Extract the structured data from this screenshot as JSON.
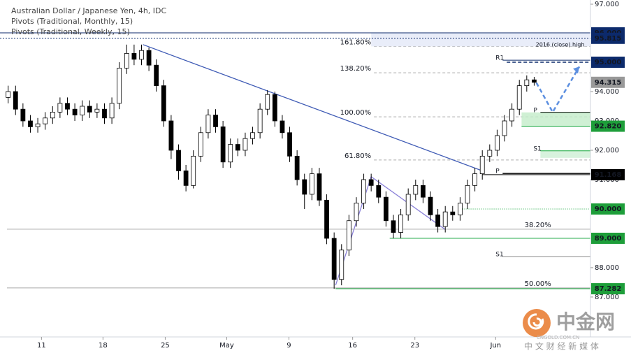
{
  "chart_data": {
    "type": "candlestick",
    "title": "Australian Dollar / Japanese Yen, 4h, IDC",
    "subtitles": [
      "Pivots (Traditional, Monthly, 15)",
      "Pivots (Traditional, Weekly, 15)"
    ],
    "open": [
      93.8,
      94.0,
      93.4,
      93.0,
      92.8,
      92.9,
      93.1,
      93.3,
      93.6,
      93.4,
      93.2,
      93.5,
      93.3,
      93.4,
      93.1,
      93.6,
      94.8,
      95.3,
      95.1,
      95.4,
      94.9,
      94.2,
      93.0,
      92.0,
      91.3,
      90.8,
      91.8,
      92.6,
      93.2,
      92.8,
      91.6,
      92.2,
      92.0,
      92.4,
      92.6,
      93.4,
      93.9,
      93.0,
      92.6,
      91.8,
      91.0,
      90.5,
      91.2,
      90.3,
      89.0,
      87.6,
      88.6,
      89.6,
      90.2,
      91.0,
      90.8,
      90.4,
      89.6,
      89.2,
      89.8,
      90.5,
      90.8,
      90.4,
      89.8,
      89.4,
      89.9,
      89.8,
      90.2,
      90.8,
      91.2,
      91.8,
      92.0,
      92.5,
      93.0,
      93.4,
      94.2,
      94.4
    ],
    "high": [
      94.2,
      94.2,
      93.6,
      93.2,
      93.1,
      93.3,
      93.5,
      93.8,
      93.8,
      93.6,
      93.7,
      93.7,
      93.6,
      93.6,
      93.8,
      95.0,
      95.6,
      95.6,
      95.6,
      95.5,
      95.1,
      94.4,
      93.2,
      92.2,
      91.5,
      92.0,
      92.8,
      93.4,
      93.4,
      93.0,
      92.4,
      92.4,
      92.6,
      92.8,
      93.6,
      94.05,
      94.0,
      93.2,
      92.8,
      92.0,
      91.2,
      91.4,
      91.4,
      90.5,
      89.2,
      88.8,
      89.8,
      90.4,
      91.2,
      91.2,
      91.0,
      90.6,
      89.8,
      90.0,
      90.7,
      91.0,
      91.0,
      90.6,
      90.0,
      90.1,
      90.1,
      90.4,
      91.0,
      91.4,
      92.0,
      92.2,
      92.7,
      93.2,
      93.6,
      94.4,
      94.55,
      94.5
    ],
    "low": [
      93.6,
      93.2,
      92.8,
      92.6,
      92.6,
      92.7,
      92.9,
      93.1,
      93.2,
      93.0,
      93.0,
      93.1,
      93.1,
      92.9,
      92.9,
      93.4,
      94.6,
      94.9,
      94.9,
      94.7,
      94.0,
      92.8,
      91.7,
      91.0,
      90.6,
      90.7,
      91.6,
      92.4,
      92.6,
      91.4,
      91.4,
      91.8,
      91.8,
      92.2,
      92.4,
      93.2,
      92.8,
      92.4,
      91.6,
      90.8,
      90.0,
      90.3,
      90.1,
      88.8,
      87.28,
      87.4,
      88.4,
      89.4,
      90.0,
      90.6,
      90.2,
      89.4,
      89.0,
      89.0,
      89.6,
      90.3,
      90.2,
      89.6,
      89.2,
      89.2,
      89.6,
      89.6,
      90.0,
      90.6,
      91.0,
      91.6,
      91.8,
      92.3,
      92.8,
      93.2,
      94.0,
      94.2
    ],
    "close": [
      94.0,
      93.4,
      93.0,
      92.8,
      92.9,
      93.1,
      93.3,
      93.6,
      93.4,
      93.2,
      93.5,
      93.3,
      93.4,
      93.1,
      93.6,
      94.8,
      95.3,
      95.1,
      95.4,
      94.9,
      94.2,
      93.0,
      92.0,
      91.3,
      90.8,
      91.8,
      92.6,
      93.2,
      92.8,
      91.6,
      92.2,
      92.0,
      92.4,
      92.6,
      93.4,
      93.9,
      93.0,
      92.6,
      91.8,
      91.0,
      90.5,
      91.2,
      90.3,
      89.0,
      87.6,
      88.6,
      89.6,
      90.2,
      91.0,
      90.8,
      90.4,
      89.6,
      89.2,
      89.8,
      90.5,
      90.8,
      90.4,
      89.8,
      89.4,
      89.9,
      89.8,
      90.2,
      90.8,
      91.2,
      91.8,
      92.0,
      92.5,
      93.0,
      93.4,
      94.2,
      94.4,
      94.315
    ],
    "up_color": "#ffffff",
    "down_color": "#000000",
    "wick_color": "#000000",
    "xlim": [
      -1.1,
      78.6
    ],
    "xticks": [
      {
        "value": 4.5,
        "label": "11"
      },
      {
        "value": 12.8,
        "label": "18"
      },
      {
        "value": 21.2,
        "label": "25"
      },
      {
        "value": 29.5,
        "label": "May"
      },
      {
        "value": 37.9,
        "label": "9"
      },
      {
        "value": 46.5,
        "label": "16"
      },
      {
        "value": 54.9,
        "label": "23"
      },
      {
        "value": 65.8,
        "label": "Jun"
      }
    ],
    "ylim": [
      85.64,
      97.12
    ],
    "yticks": [
      {
        "value": 97,
        "label": "97.000"
      },
      {
        "value": 94,
        "label": "94.000"
      },
      {
        "value": 93,
        "label": "93.000"
      },
      {
        "value": 92,
        "label": "92.000"
      },
      {
        "value": 91,
        "label": "91.000"
      },
      {
        "value": 88,
        "label": "88.000"
      },
      {
        "value": 87,
        "label": "87.000"
      }
    ],
    "levels": [
      {
        "value": 96,
        "label": "96.000",
        "color": "#0c2a6b",
        "x0": -1.1,
        "dash": "none"
      },
      {
        "value": 95.815,
        "label": "95.815",
        "color": "#0c2a6b",
        "x0": -1.1,
        "dash": "2 2"
      },
      {
        "value": 95,
        "label": "95.000",
        "color": "#0c2a6b",
        "x0": 67.3,
        "dash": "5 3"
      },
      {
        "value": 92.82,
        "label": "92.820",
        "color": "#12a53a",
        "x0": 69.3,
        "dash": "none"
      },
      {
        "value": 91.168,
        "label": "91.168",
        "color": "#000000",
        "x0": 64,
        "dash": "none"
      },
      {
        "value": 90,
        "label": "90.000",
        "color": "#12a53a",
        "x0": 61.3,
        "dash": "1 2"
      },
      {
        "value": 89,
        "label": "89.000",
        "color": "#12a53a",
        "x0": 51.5,
        "dash": "none"
      },
      {
        "value": 87.282,
        "label": "87.282",
        "color": "#12a53a",
        "x0": 44.2,
        "dash": "none"
      }
    ],
    "fibs": [
      {
        "value": 95.54,
        "label": "161.80%",
        "x": 49
      },
      {
        "value": 94.64,
        "label": "138.20%",
        "x": 49
      },
      {
        "value": 93.14,
        "label": "100.00%",
        "x": 49
      },
      {
        "value": 91.67,
        "label": "61.80%",
        "x": 49
      },
      {
        "value": 89.31,
        "label": "38.20%",
        "x": 71.5
      },
      {
        "value": 87.31,
        "label": "50.00%",
        "x": 71.5
      }
    ],
    "pivots": [
      {
        "value": 95.07,
        "label": "R1",
        "color": "#0c2a6b",
        "x": 65.8
      },
      {
        "value": 93.29,
        "label": "P",
        "color": "#000000",
        "x": 70.9
      },
      {
        "value": 91.98,
        "label": "S1",
        "color": "#12a53a",
        "x": 70.9
      },
      {
        "value": 91.21,
        "label": "P",
        "color": "#000000",
        "x": 65.8
      },
      {
        "value": 88.38,
        "label": "S1",
        "color": "#888888",
        "x": 65.8
      }
    ],
    "note": {
      "text": "2016 (close) high",
      "x": 74.5,
      "y": 95.6
    },
    "trendlines": [
      {
        "x": [
          18.2,
          64
        ],
        "y": [
          95.6,
          91.3
        ],
        "color": "#3f5bb5"
      },
      {
        "x": [
          44.2,
          49
        ],
        "y": [
          87.4,
          91.1
        ],
        "color": "#8a80d8"
      },
      {
        "x": [
          49,
          59
        ],
        "y": [
          91.1,
          89.3
        ],
        "color": "#8a80d8"
      }
    ],
    "projection": {
      "x": [
        71.3,
        73.5,
        77.1
      ],
      "y": [
        94.3,
        93.3,
        94.85
      ],
      "color": "#5c8fe0"
    },
    "last_price_color": "#999999",
    "watermark": {
      "name": "中金网",
      "tagline": "中 文 财 经 新 媒 体",
      "site": "CNGOLD.COM.CN"
    }
  }
}
